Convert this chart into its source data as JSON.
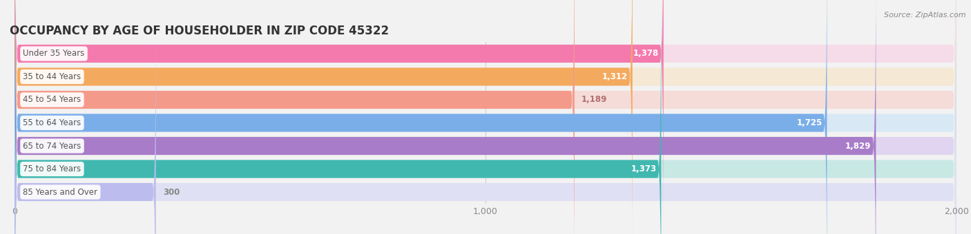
{
  "title": "OCCUPANCY BY AGE OF HOUSEHOLDER IN ZIP CODE 45322",
  "source": "Source: ZipAtlas.com",
  "categories": [
    "Under 35 Years",
    "35 to 44 Years",
    "45 to 54 Years",
    "55 to 64 Years",
    "65 to 74 Years",
    "75 to 84 Years",
    "85 Years and Over"
  ],
  "values": [
    1378,
    1312,
    1189,
    1725,
    1829,
    1373,
    300
  ],
  "bar_colors": [
    "#F47AAE",
    "#F4AA5E",
    "#F49A8A",
    "#7AAEE8",
    "#A87CC8",
    "#40B8B0",
    "#BCBCEE"
  ],
  "bar_bg_colors": [
    "#F5DCE8",
    "#F5E8D4",
    "#F5DCD8",
    "#D8E8F5",
    "#E0D4F0",
    "#C8E8E4",
    "#E0E0F4"
  ],
  "value_label_colors": [
    "white",
    "white",
    "#B07070",
    "white",
    "white",
    "white",
    "#888888"
  ],
  "value_inside": [
    true,
    true,
    false,
    true,
    true,
    true,
    false
  ],
  "xlim": [
    0,
    2000
  ],
  "xticks": [
    0,
    1000,
    2000
  ],
  "xticklabels": [
    "0",
    "1,000",
    "2,000"
  ],
  "title_fontsize": 12,
  "background_color": "#F2F2F2",
  "label_text_color": "#555555"
}
